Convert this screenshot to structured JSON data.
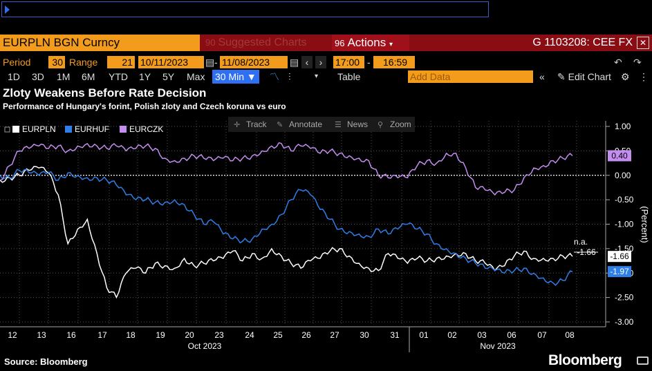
{
  "cmd": {
    "value": ""
  },
  "header": {
    "security": "EURPLN BGN Curncy",
    "suggested_num": "90",
    "suggested": "Suggested Charts",
    "actions_num": "96",
    "actions": "Actions",
    "gtag": "G 1103208: CEE FX"
  },
  "params": {
    "period_label": "Period",
    "period": "30",
    "range_label": "Range",
    "range": "21",
    "start_date": "10/11/2023",
    "end_date": "11/08/2023",
    "start_time": "17:00",
    "end_time": "16:59"
  },
  "toolbar": {
    "ranges": [
      "1D",
      "3D",
      "1M",
      "6M",
      "YTD",
      "1Y",
      "5Y",
      "Max"
    ],
    "interval": "30 Min",
    "table": "Table",
    "add_data": "Add Data",
    "edit_chart": "Edit Chart"
  },
  "title": "Zloty Weakens Before Rate Decision",
  "subtitle": "Performance of Hungary's forint, Polish zloty and Czech koruna vs euro",
  "source": "Source: Bloomberg",
  "logo": "Bloomberg",
  "chart_tools": [
    "Track",
    "Annotate",
    "News",
    "Zoom"
  ],
  "colors": {
    "eurpln": "#ffffff",
    "eurhuf": "#2f7fe8",
    "eurczk": "#c48df0",
    "accent": "#f39b1b"
  },
  "chart_data": {
    "type": "line",
    "ylabel": "(Percent)",
    "ylim": [
      -3.0,
      1.0
    ],
    "yticks": [
      1.0,
      0.5,
      0.0,
      -0.5,
      -1.0,
      -1.5,
      -2.0,
      -2.5,
      -3.0
    ],
    "ytick_labels": [
      "1.00",
      "0.50",
      "0.00",
      "-0.50",
      "-1.00",
      "-1.50",
      "-2.00",
      "-2.50",
      "-3.00"
    ],
    "x_tick_labels": [
      "12",
      "13",
      "16",
      "17",
      "18",
      "19",
      "20",
      "23",
      "24",
      "25",
      "26",
      "27",
      "30",
      "31",
      "01",
      "02",
      "03",
      "06",
      "07",
      "08"
    ],
    "months": [
      "Oct 2023",
      "Nov 2023"
    ],
    "series": [
      {
        "name": "EURPLN",
        "last_label": "-1.66",
        "annotation": "n.a.",
        "annotation_value": "-1.66",
        "values": [
          -0.1,
          -0.05,
          0.0,
          0.1,
          0.15,
          0.05,
          -0.4,
          -1.4,
          -1.1,
          -0.9,
          -1.6,
          -2.3,
          -2.5,
          -2.0,
          -1.9,
          -2.0,
          -1.8,
          -1.85,
          -1.9,
          -1.7,
          -1.85,
          -1.8,
          -1.75,
          -1.7,
          -1.55,
          -1.75,
          -1.6,
          -1.7,
          -1.5,
          -1.65,
          -1.8,
          -1.9,
          -1.75,
          -1.7,
          -1.55,
          -1.5,
          -1.65,
          -1.8,
          -1.9,
          -1.95,
          -1.6,
          -1.7,
          -1.8,
          -1.7,
          -1.75,
          -1.7,
          -1.65,
          -1.6,
          -1.6,
          -1.75,
          -1.8,
          -1.95,
          -1.85,
          -1.65,
          -1.55,
          -1.7,
          -1.7,
          -1.7,
          -1.65,
          -1.66
        ]
      },
      {
        "name": "EURHUF",
        "last_label": "-1.97",
        "values": [
          0.0,
          -0.05,
          0.1,
          0.05,
          0.0,
          0.05,
          -0.1,
          0.05,
          0.0,
          -0.05,
          -0.05,
          -0.1,
          -0.2,
          -0.4,
          -0.5,
          -0.5,
          -0.55,
          -0.55,
          -0.5,
          -0.6,
          -0.8,
          -1.0,
          -0.95,
          -1.2,
          -1.3,
          -1.35,
          -1.3,
          -1.1,
          -1.0,
          -0.8,
          -0.5,
          -0.3,
          -0.4,
          -0.7,
          -0.9,
          -1.1,
          -1.15,
          -1.2,
          -1.25,
          -1.1,
          -1.2,
          -1.1,
          -1.0,
          -1.1,
          -1.2,
          -1.4,
          -1.5,
          -1.6,
          -1.7,
          -1.8,
          -1.9,
          -1.95,
          -2.0,
          -1.95,
          -1.9,
          -2.0,
          -2.1,
          -2.2,
          -2.15,
          -1.97
        ]
      },
      {
        "name": "EURCZK",
        "last_label": "0.40",
        "values": [
          -0.1,
          0.2,
          0.5,
          0.55,
          0.6,
          0.55,
          0.6,
          0.5,
          0.6,
          0.65,
          0.6,
          0.55,
          0.6,
          0.5,
          0.55,
          0.6,
          0.55,
          0.35,
          0.3,
          0.35,
          0.4,
          0.35,
          0.3,
          0.35,
          0.3,
          0.35,
          0.4,
          0.5,
          0.6,
          0.65,
          0.5,
          0.6,
          0.55,
          0.45,
          0.5,
          0.45,
          0.4,
          0.35,
          0.3,
          0.0,
          -0.05,
          -0.05,
          -0.05,
          0.2,
          0.3,
          0.25,
          0.45,
          0.45,
          0.15,
          -0.25,
          -0.3,
          -0.4,
          -0.35,
          -0.3,
          -0.05,
          0.15,
          0.2,
          0.3,
          0.35,
          0.4
        ]
      }
    ]
  }
}
